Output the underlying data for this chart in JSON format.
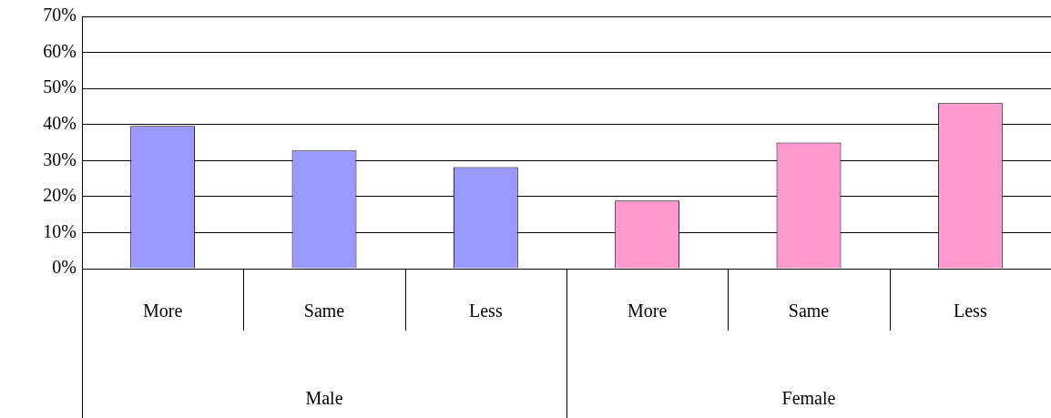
{
  "chart_data": {
    "type": "bar",
    "categories": [
      "More",
      "Same",
      "Less",
      "More",
      "Same",
      "Less"
    ],
    "values": [
      39.6,
      32.8,
      28.2,
      18.9,
      35,
      45.9
    ],
    "colors": [
      "#9999ff",
      "#9999ff",
      "#9999ff",
      "#ff99cc",
      "#ff99cc",
      "#ff99cc"
    ],
    "ylim": [
      0,
      70
    ],
    "yticks": [
      {
        "value": 0,
        "label": "0%"
      },
      {
        "value": 10,
        "label": "10%"
      },
      {
        "value": 20,
        "label": "20%"
      },
      {
        "value": 30,
        "label": "30%"
      },
      {
        "value": 40,
        "label": "40%"
      },
      {
        "value": 50,
        "label": "50%"
      },
      {
        "value": 60,
        "label": "60%"
      },
      {
        "value": 70,
        "label": "70%"
      }
    ],
    "annotations": [
      "Male",
      "Female"
    ],
    "grid": "y",
    "legend": false
  }
}
